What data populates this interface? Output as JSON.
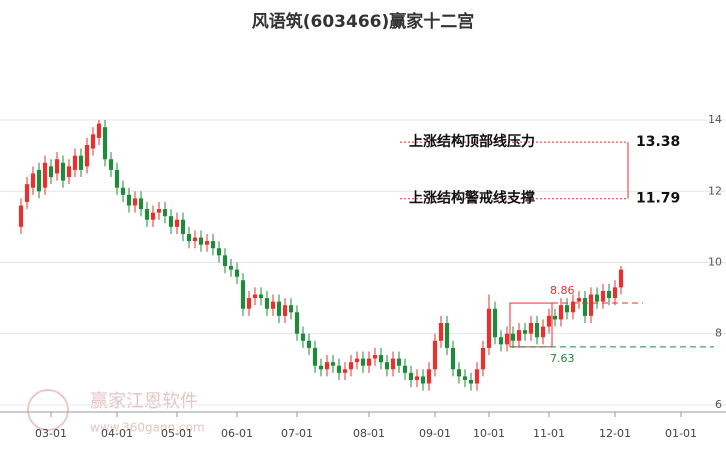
{
  "chart_data": {
    "type": "candlestick",
    "title": "风语筑(603466)赢家十二宫",
    "categories": [
      null,
      null,
      null,
      null,
      null,
      "03-01",
      null,
      null,
      null,
      null,
      null,
      null,
      null,
      null,
      null,
      null,
      "04-01",
      null,
      null,
      null,
      null,
      null,
      null,
      null,
      null,
      null,
      "05-01",
      null,
      null,
      null,
      null,
      null,
      null,
      null,
      null,
      null,
      "06-01",
      null,
      null,
      null,
      null,
      null,
      null,
      null,
      null,
      null,
      "07-01",
      null,
      null,
      null,
      null,
      null,
      null,
      null,
      null,
      null,
      null,
      null,
      "08-01",
      null,
      null,
      null,
      null,
      null,
      null,
      null,
      null,
      null,
      null,
      "09-01",
      null,
      null,
      null,
      null,
      null,
      null,
      null,
      null,
      "10-01",
      null,
      null,
      null,
      null,
      null,
      null,
      null,
      null,
      null,
      "11-01",
      null,
      null,
      null,
      null,
      null,
      null,
      null,
      null,
      null,
      null,
      "12-01",
      null,
      null,
      null,
      null,
      null,
      null,
      null,
      null,
      null,
      null,
      "01-01",
      null,
      null,
      null,
      null,
      null
    ],
    "open": [
      11.0,
      11.7,
      12.1,
      12.6,
      12.1,
      12.7,
      12.5,
      12.8,
      12.4,
      12.6,
      13.0,
      12.7,
      13.2,
      13.5,
      13.8,
      12.9,
      12.6,
      12.1,
      11.9,
      11.6,
      11.8,
      11.5,
      11.2,
      11.4,
      11.5,
      11.3,
      11.0,
      11.2,
      10.8,
      10.6,
      10.7,
      10.5,
      10.6,
      10.4,
      10.2,
      9.9,
      9.8,
      9.5,
      8.7,
      9.0,
      9.1,
      9.0,
      8.7,
      8.9,
      8.5,
      8.8,
      8.6,
      8.0,
      7.8,
      7.6,
      7.1,
      7.0,
      7.2,
      7.1,
      6.9,
      7.0,
      7.2,
      7.3,
      7.1,
      7.3,
      7.4,
      7.2,
      7.0,
      7.3,
      7.1,
      6.9,
      6.7,
      6.8,
      6.6,
      7.0,
      7.8,
      8.3,
      7.6,
      7.0,
      6.8,
      6.7,
      6.6,
      7.0,
      7.6,
      8.7,
      7.9,
      7.7,
      8.0,
      7.8,
      8.1,
      8.0,
      8.3,
      7.9,
      8.2,
      8.5,
      8.4,
      8.8,
      8.6,
      8.9,
      9.0,
      8.5,
      9.1,
      8.9,
      9.2,
      9.0,
      9.3,
      null,
      null,
      null,
      null,
      null,
      null,
      null,
      null,
      null,
      null,
      null,
      null,
      null,
      null,
      null
    ],
    "high": [
      11.8,
      12.4,
      12.7,
      12.8,
      13.0,
      12.9,
      13.1,
      13.0,
      12.9,
      13.2,
      13.2,
      13.5,
      13.8,
      14.0,
      14.0,
      13.1,
      12.8,
      12.3,
      12.1,
      12.0,
      12.0,
      11.7,
      11.6,
      11.7,
      11.7,
      11.5,
      11.4,
      11.4,
      11.0,
      10.9,
      10.9,
      10.8,
      10.8,
      10.6,
      10.4,
      10.1,
      10.0,
      9.7,
      9.2,
      9.3,
      9.3,
      9.2,
      9.1,
      9.1,
      9.0,
      9.0,
      8.8,
      8.2,
      8.0,
      7.8,
      7.3,
      7.4,
      7.4,
      7.3,
      7.2,
      7.4,
      7.5,
      7.5,
      7.5,
      7.6,
      7.6,
      7.4,
      7.5,
      7.5,
      7.3,
      7.1,
      7.0,
      7.0,
      7.2,
      8.0,
      8.5,
      8.5,
      7.8,
      7.2,
      7.0,
      6.9,
      7.2,
      7.8,
      9.1,
      8.9,
      8.1,
      8.2,
      8.2,
      8.3,
      8.3,
      8.5,
      8.5,
      8.4,
      8.7,
      8.7,
      9.0,
      9.0,
      9.1,
      9.2,
      9.2,
      9.3,
      9.3,
      9.4,
      9.4,
      9.5,
      9.9,
      null,
      null,
      null,
      null,
      null,
      null,
      null,
      null,
      null,
      null,
      null,
      null,
      null,
      null,
      null
    ],
    "low": [
      10.8,
      11.5,
      11.9,
      11.8,
      11.9,
      12.2,
      12.3,
      12.1,
      12.2,
      12.4,
      12.4,
      12.5,
      13.0,
      13.3,
      12.7,
      12.4,
      11.9,
      11.7,
      11.4,
      11.4,
      11.3,
      11.0,
      11.0,
      11.2,
      11.1,
      10.8,
      10.8,
      10.6,
      10.4,
      10.4,
      10.3,
      10.3,
      10.2,
      10.0,
      9.7,
      9.6,
      9.4,
      8.5,
      8.5,
      8.8,
      8.8,
      8.5,
      8.5,
      8.3,
      8.3,
      8.4,
      7.8,
      7.6,
      7.4,
      6.9,
      6.8,
      6.8,
      6.9,
      6.7,
      6.7,
      6.8,
      7.0,
      6.9,
      6.9,
      7.1,
      7.0,
      6.8,
      6.8,
      6.9,
      6.7,
      6.5,
      6.5,
      6.4,
      6.4,
      6.8,
      7.6,
      7.4,
      6.8,
      6.6,
      6.5,
      6.4,
      6.4,
      6.8,
      7.4,
      7.7,
      7.5,
      7.5,
      7.6,
      7.6,
      7.8,
      7.8,
      7.7,
      7.7,
      8.0,
      8.2,
      8.2,
      8.4,
      8.4,
      8.7,
      8.3,
      8.3,
      8.7,
      8.7,
      8.8,
      8.8,
      9.1,
      null,
      null,
      null,
      null,
      null,
      null,
      null,
      null,
      null,
      null,
      null,
      null,
      null,
      null,
      null
    ],
    "close": [
      11.6,
      12.2,
      12.5,
      12.0,
      12.8,
      12.4,
      12.9,
      12.3,
      12.7,
      13.0,
      12.6,
      13.3,
      13.6,
      13.9,
      12.9,
      12.6,
      12.1,
      11.9,
      11.6,
      11.8,
      11.5,
      11.2,
      11.4,
      11.5,
      11.3,
      11.0,
      11.2,
      10.8,
      10.6,
      10.7,
      10.5,
      10.6,
      10.4,
      10.2,
      9.9,
      9.8,
      9.6,
      8.7,
      9.0,
      9.1,
      9.0,
      8.7,
      8.9,
      8.5,
      8.8,
      8.6,
      8.0,
      7.8,
      7.6,
      7.1,
      7.0,
      7.2,
      7.1,
      6.9,
      7.0,
      7.2,
      7.3,
      7.1,
      7.3,
      7.4,
      7.2,
      7.0,
      7.3,
      7.1,
      6.9,
      6.7,
      6.8,
      6.6,
      7.0,
      7.8,
      8.3,
      7.6,
      7.0,
      6.8,
      6.7,
      6.6,
      7.0,
      7.6,
      8.7,
      7.9,
      7.7,
      8.0,
      7.8,
      8.1,
      8.0,
      8.3,
      7.9,
      8.2,
      8.5,
      8.4,
      8.8,
      8.6,
      8.9,
      9.0,
      8.5,
      9.1,
      8.9,
      9.2,
      9.0,
      9.3,
      9.8,
      null,
      null,
      null,
      null,
      null,
      null,
      null,
      null,
      null,
      null,
      null,
      null,
      null,
      null,
      null
    ],
    "up_color": "#e8312f",
    "down_color": "#1f8a3b",
    "ylim": [
      5.8,
      14.6
    ],
    "yticks": [
      6,
      8,
      10,
      12,
      14
    ],
    "grid": true,
    "resistance": {
      "label": "上涨结构顶部线压力",
      "value": 13.38
    },
    "support": {
      "label": "上涨结构警戒线支撑",
      "value": 11.79
    },
    "box": {
      "top": 8.86,
      "bottom": 7.63
    },
    "watermark": {
      "name": "赢家江恩软件",
      "url": "www.360gann.com"
    }
  }
}
